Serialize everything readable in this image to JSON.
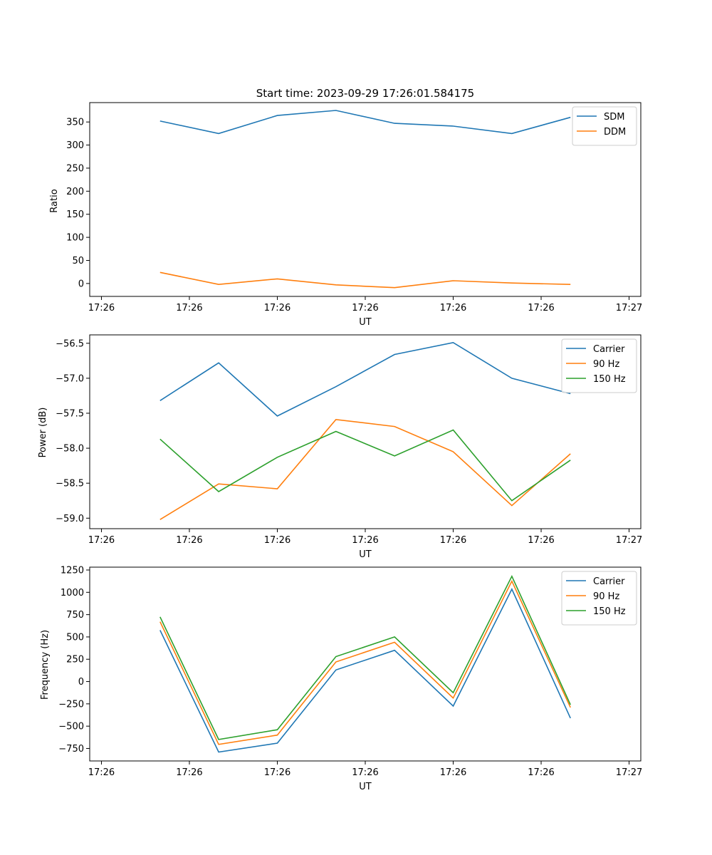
{
  "colors": {
    "blue": "#1f77b4",
    "orange": "#ff7f0e",
    "green": "#2ca02c"
  },
  "chart_data": [
    {
      "type": "line",
      "title": "Start time: 2023-09-29 17:26:01.584175",
      "xlabel": "UT",
      "ylabel": "Ratio",
      "x": [
        1.0,
        2.0,
        3.0,
        4.0,
        5.0,
        6.0,
        7.0,
        8.0
      ],
      "xlim": [
        -0.2,
        9.2
      ],
      "x_ticks": [
        0.0,
        1.5,
        3.0,
        4.5,
        6.0,
        7.5,
        9.0
      ],
      "x_tick_labels": [
        "17:26",
        "17:26",
        "17:26",
        "17:26",
        "17:26",
        "17:26",
        "17:27"
      ],
      "ylim": [
        -28,
        392
      ],
      "y_ticks": [
        0,
        50,
        100,
        150,
        200,
        250,
        300,
        350
      ],
      "y_tick_labels": [
        "0",
        "50",
        "100",
        "150",
        "200",
        "250",
        "300",
        "350"
      ],
      "legend_position": "top-right",
      "series": [
        {
          "name": "SDM",
          "color": "#1f77b4",
          "values": [
            352,
            325,
            364,
            375,
            347,
            341,
            325,
            360
          ]
        },
        {
          "name": "DDM",
          "color": "#ff7f0e",
          "values": [
            24,
            -2,
            10,
            -3,
            -9,
            6,
            1,
            -2
          ]
        }
      ]
    },
    {
      "type": "line",
      "title": "",
      "xlabel": "UT",
      "ylabel": "Power (dB)",
      "x": [
        1.0,
        2.0,
        3.0,
        4.0,
        5.0,
        6.0,
        7.0,
        8.0
      ],
      "xlim": [
        -0.2,
        9.2
      ],
      "x_ticks": [
        0.0,
        1.5,
        3.0,
        4.5,
        6.0,
        7.5,
        9.0
      ],
      "x_tick_labels": [
        "17:26",
        "17:26",
        "17:26",
        "17:26",
        "17:26",
        "17:26",
        "17:27"
      ],
      "ylim": [
        -59.15,
        -56.38
      ],
      "y_ticks": [
        -59.0,
        -58.5,
        -58.0,
        -57.5,
        -57.0,
        -56.5
      ],
      "y_tick_labels": [
        "−59.0",
        "−58.5",
        "−58.0",
        "−57.5",
        "−57.0",
        "−56.5"
      ],
      "legend_position": "top-right",
      "series": [
        {
          "name": "Carrier",
          "color": "#1f77b4",
          "values": [
            -57.32,
            -56.78,
            -57.54,
            -57.12,
            -56.66,
            -56.49,
            -57.0,
            -57.22
          ]
        },
        {
          "name": "90 Hz",
          "color": "#ff7f0e",
          "values": [
            -59.02,
            -58.51,
            -58.58,
            -57.59,
            -57.69,
            -58.05,
            -58.82,
            -58.08
          ]
        },
        {
          "name": "150 Hz",
          "color": "#2ca02c",
          "values": [
            -57.87,
            -58.62,
            -58.13,
            -57.76,
            -58.11,
            -57.74,
            -58.75,
            -58.17
          ]
        }
      ]
    },
    {
      "type": "line",
      "title": "",
      "xlabel": "UT",
      "ylabel": "Frequency (Hz)",
      "x": [
        1.0,
        2.0,
        3.0,
        4.0,
        5.0,
        6.0,
        7.0,
        8.0
      ],
      "xlim": [
        -0.2,
        9.2
      ],
      "x_ticks": [
        0.0,
        1.5,
        3.0,
        4.5,
        6.0,
        7.5,
        9.0
      ],
      "x_tick_labels": [
        "17:26",
        "17:26",
        "17:26",
        "17:26",
        "17:26",
        "17:26",
        "17:27"
      ],
      "ylim": [
        -890,
        1282
      ],
      "y_ticks": [
        -750,
        -500,
        -250,
        0,
        250,
        500,
        750,
        1000,
        1250
      ],
      "y_tick_labels": [
        "−750",
        "−500",
        "−250",
        "0",
        "250",
        "500",
        "750",
        "1000",
        "1250"
      ],
      "legend_position": "top-right",
      "series": [
        {
          "name": "Carrier",
          "color": "#1f77b4",
          "values": [
            575,
            -790,
            -690,
            130,
            350,
            -275,
            1035,
            -410
          ]
        },
        {
          "name": "90 Hz",
          "color": "#ff7f0e",
          "values": [
            670,
            -705,
            -600,
            220,
            440,
            -185,
            1125,
            -290
          ]
        },
        {
          "name": "150 Hz",
          "color": "#2ca02c",
          "values": [
            725,
            -650,
            -540,
            280,
            500,
            -125,
            1180,
            -260
          ]
        }
      ]
    }
  ]
}
